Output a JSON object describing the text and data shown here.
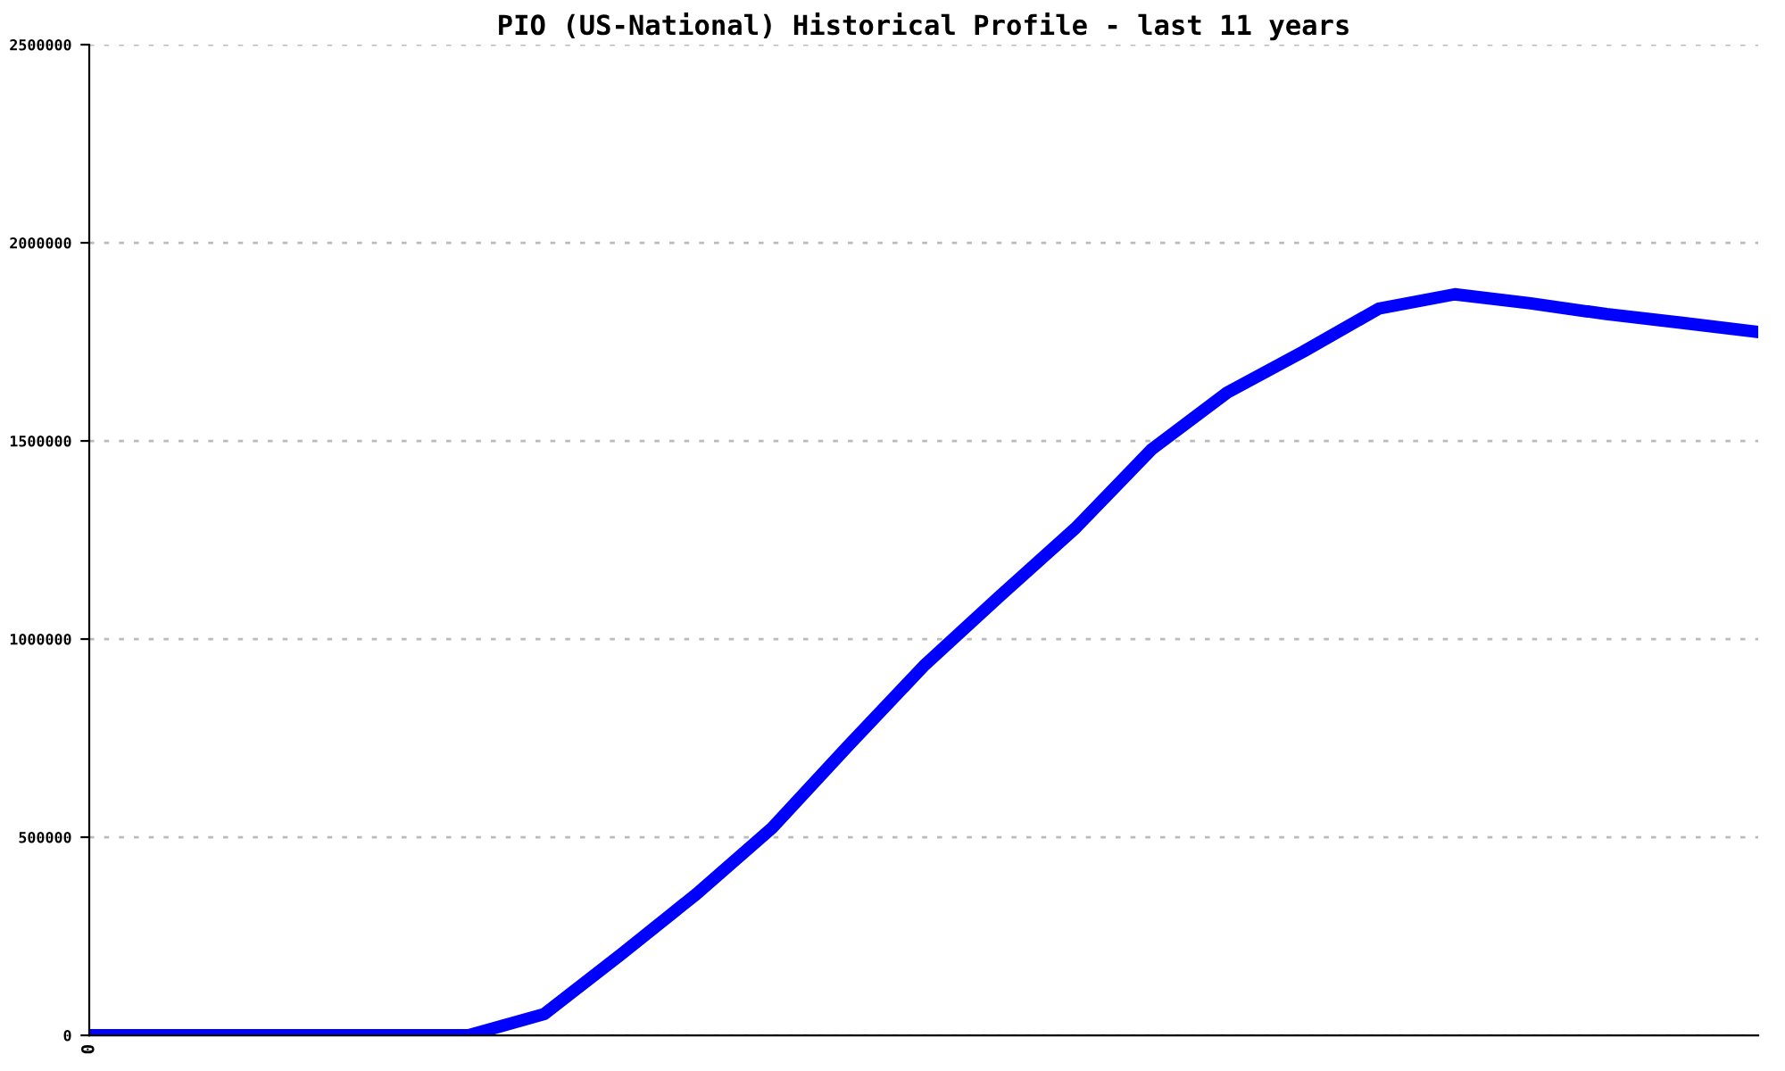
{
  "chart_data": {
    "type": "line",
    "title": "PIO (US-National) Historical Profile - last 11 years",
    "categories": [
      "0",
      null,
      null,
      null,
      null,
      null,
      null,
      null,
      null,
      null,
      null,
      null,
      null,
      null,
      null,
      null,
      null,
      null,
      null,
      null,
      null,
      null,
      null
    ],
    "series": [
      {
        "color": "#0000ff",
        "values": [
          0,
          0,
          0,
          0,
          0,
          0,
          54000,
          203000,
          356000,
          523000,
          730000,
          932000,
          1108000,
          1280000,
          1478000,
          1622000,
          1725000,
          1834000,
          1870000,
          1847000,
          1820000,
          1798000,
          1775000
        ]
      }
    ],
    "ylim": [
      0,
      2500000
    ],
    "yticks": [
      0,
      500000,
      1000000,
      1500000,
      2000000,
      2500000
    ],
    "grid": "y",
    "legend": false,
    "marker": "none",
    "line_style": "solid"
  }
}
